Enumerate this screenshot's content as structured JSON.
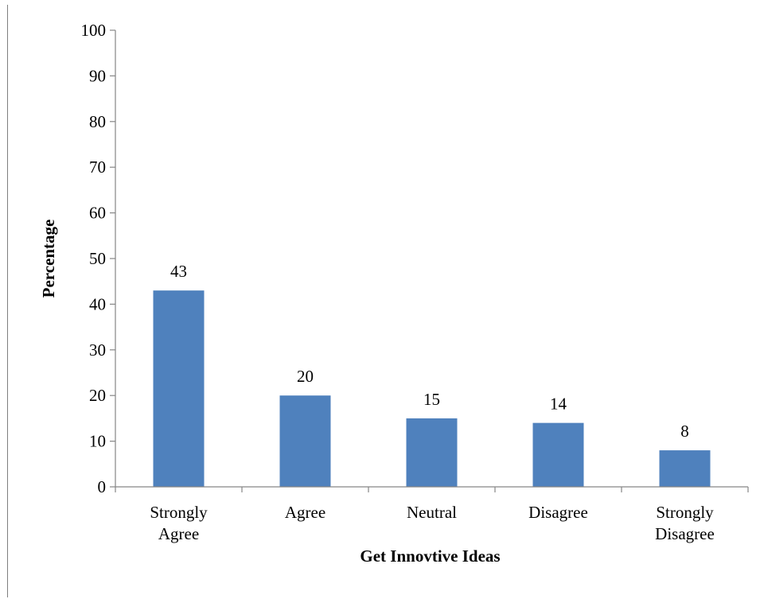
{
  "chart_data": {
    "type": "bar",
    "categories": [
      [
        "Strongly",
        "Agree"
      ],
      [
        "Agree"
      ],
      [
        "Neutral"
      ],
      [
        "Disagree"
      ],
      [
        "Strongly",
        "Disagree"
      ]
    ],
    "values": [
      43,
      20,
      15,
      14,
      8
    ],
    "data_labels": [
      "43",
      "20",
      "15",
      "14",
      "8"
    ],
    "y_ticks": [
      "0",
      "10",
      "20",
      "30",
      "40",
      "50",
      "60",
      "70",
      "80",
      "90",
      "100"
    ],
    "title": "",
    "xlabel": "Get Innovtive Ideas",
    "ylabel": "Percentage",
    "ylim": [
      0,
      100
    ],
    "grid": false,
    "legend": "none",
    "bar_color": "#4f81bd",
    "axis_color": "#868686"
  }
}
